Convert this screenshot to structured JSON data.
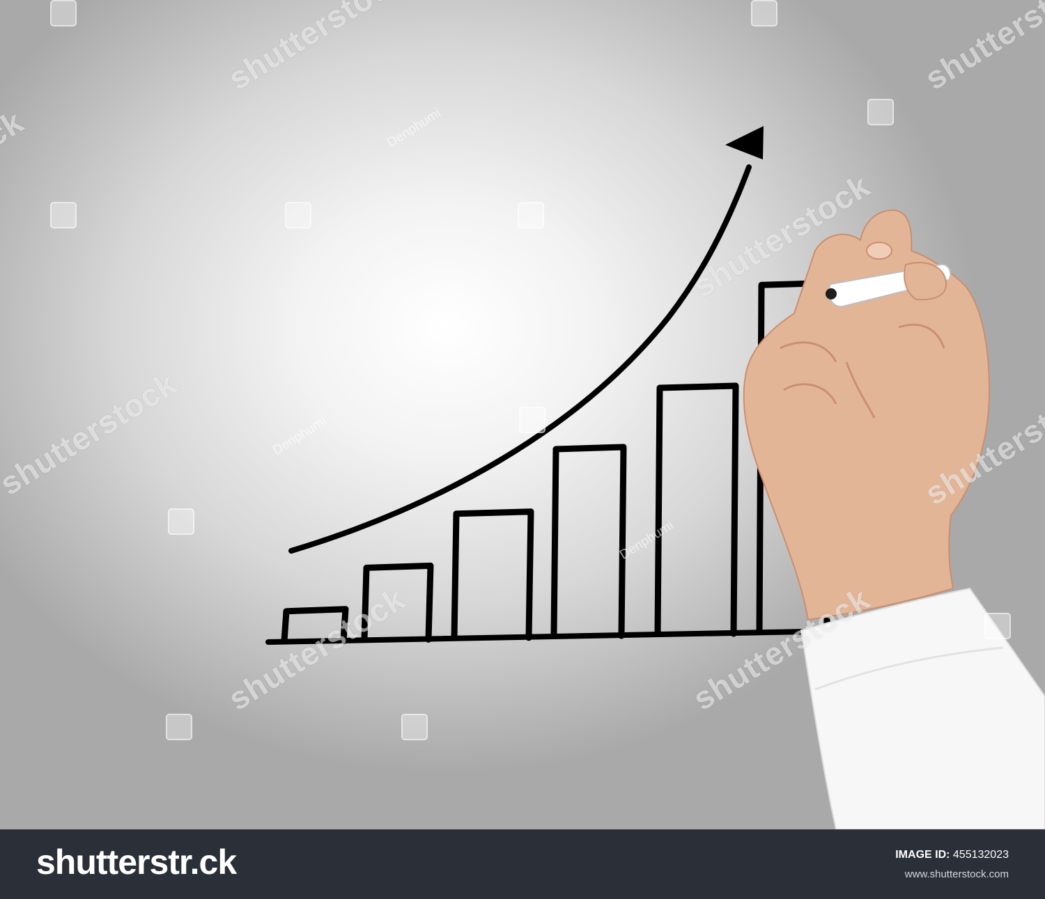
{
  "photo": {
    "subject": "hand drawing bar chart with rising arrow",
    "background_colors": [
      "#ffffff",
      "#a9a9a9"
    ],
    "ink_color": "#000000",
    "skin_color": "#e3b597",
    "sleeve_color": "#f7f7f7",
    "pen_color": "#ffffff"
  },
  "chart_data": {
    "type": "bar",
    "categories": [
      "",
      "",
      "",
      "",
      "",
      ""
    ],
    "values": [
      0.9,
      2.1,
      3.6,
      5.4,
      7.1,
      10.0
    ],
    "title": "",
    "xlabel": "",
    "ylabel": "",
    "ylim": [
      0,
      10
    ],
    "grid": false,
    "trend_arrow": "rising curve from lower-left to upper-right"
  },
  "watermarks": {
    "brand": "shutterstock",
    "contributor": "Denphumi"
  },
  "footer": {
    "logo": "shutterstr.ck",
    "image_id_label": "IMAGE ID:",
    "image_id": "455132023",
    "url": "www.shutterstock.com"
  }
}
